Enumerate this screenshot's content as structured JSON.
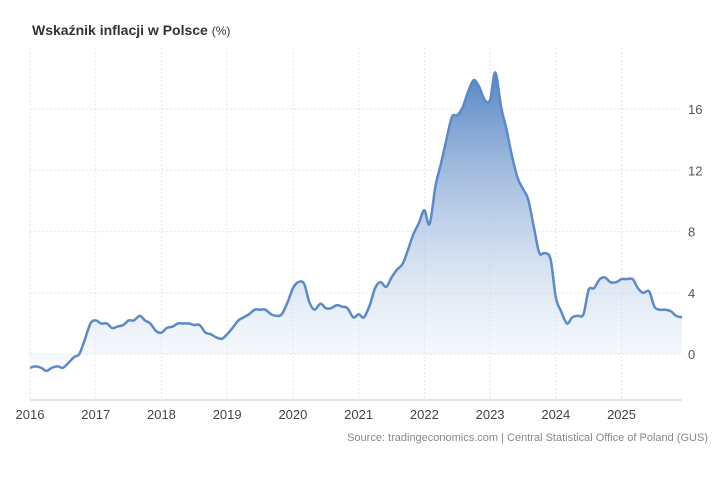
{
  "header": {
    "title": "Wskaźnik inflacji w Polsce",
    "unit": "(%)"
  },
  "footer": {
    "source": "Source: tradingeconomics.com | Central Statistical Office of Poland (GUS)"
  },
  "colors": {
    "line": "#5b8ac7",
    "fill_top": "#5585c4",
    "fill_bottom": "#eef3fb",
    "grid": "#e6e6e6"
  },
  "chart_data": {
    "type": "area",
    "title": "Wskaźnik inflacji w Polsce (%)",
    "xlabel": "",
    "ylabel": "",
    "x_range": [
      2016.0,
      2025.92
    ],
    "ylim": [
      -3,
      20
    ],
    "x_ticks": [
      "2016",
      "2017",
      "2018",
      "2019",
      "2020",
      "2021",
      "2022",
      "2023",
      "2024",
      "2025"
    ],
    "y_ticks": [
      0,
      4,
      8,
      12,
      16
    ],
    "grid": true,
    "series": [
      {
        "name": "Wskaźnik inflacji",
        "x": [
          2016.0,
          2016.08,
          2016.17,
          2016.25,
          2016.33,
          2016.42,
          2016.5,
          2016.58,
          2016.67,
          2016.75,
          2016.83,
          2016.92,
          2017.0,
          2017.08,
          2017.17,
          2017.25,
          2017.33,
          2017.42,
          2017.5,
          2017.58,
          2017.67,
          2017.75,
          2017.83,
          2017.92,
          2018.0,
          2018.08,
          2018.17,
          2018.25,
          2018.33,
          2018.42,
          2018.5,
          2018.58,
          2018.67,
          2018.75,
          2018.83,
          2018.92,
          2019.0,
          2019.08,
          2019.17,
          2019.25,
          2019.33,
          2019.42,
          2019.5,
          2019.58,
          2019.67,
          2019.75,
          2019.83,
          2019.92,
          2020.0,
          2020.08,
          2020.17,
          2020.25,
          2020.33,
          2020.42,
          2020.5,
          2020.58,
          2020.67,
          2020.75,
          2020.83,
          2020.92,
          2021.0,
          2021.08,
          2021.17,
          2021.25,
          2021.33,
          2021.42,
          2021.5,
          2021.58,
          2021.67,
          2021.75,
          2021.83,
          2021.92,
          2022.0,
          2022.08,
          2022.17,
          2022.25,
          2022.33,
          2022.42,
          2022.5,
          2022.58,
          2022.67,
          2022.75,
          2022.83,
          2022.92,
          2023.0,
          2023.08,
          2023.17,
          2023.25,
          2023.33,
          2023.42,
          2023.5,
          2023.58,
          2023.67,
          2023.75,
          2023.83,
          2023.92,
          2024.0,
          2024.08,
          2024.17,
          2024.25,
          2024.33,
          2024.42,
          2024.5,
          2024.58,
          2024.67,
          2024.75,
          2024.83,
          2024.92,
          2025.0,
          2025.08,
          2025.17,
          2025.25,
          2025.33,
          2025.42,
          2025.5,
          2025.58,
          2025.67,
          2025.75,
          2025.83,
          2025.92
        ],
        "values": [
          -0.9,
          -0.8,
          -0.9,
          -1.1,
          -0.9,
          -0.8,
          -0.9,
          -0.6,
          -0.2,
          0.0,
          0.9,
          2.0,
          2.2,
          2.0,
          2.0,
          1.7,
          1.8,
          1.9,
          2.2,
          2.2,
          2.5,
          2.2,
          2.0,
          1.5,
          1.4,
          1.7,
          1.8,
          2.0,
          2.0,
          2.0,
          1.9,
          1.9,
          1.4,
          1.3,
          1.1,
          1.0,
          1.3,
          1.7,
          2.2,
          2.4,
          2.6,
          2.9,
          2.9,
          2.9,
          2.6,
          2.5,
          2.6,
          3.4,
          4.3,
          4.7,
          4.6,
          3.4,
          2.9,
          3.3,
          3.0,
          3.0,
          3.2,
          3.1,
          3.0,
          2.4,
          2.6,
          2.4,
          3.2,
          4.3,
          4.7,
          4.4,
          5.0,
          5.5,
          5.9,
          6.8,
          7.8,
          8.6,
          9.4,
          8.5,
          11.0,
          12.4,
          13.9,
          15.5,
          15.6,
          16.1,
          17.2,
          17.9,
          17.5,
          16.6,
          16.6,
          18.4,
          16.1,
          14.7,
          13.0,
          11.5,
          10.8,
          10.1,
          8.2,
          6.6,
          6.6,
          6.2,
          3.7,
          2.8,
          2.0,
          2.4,
          2.5,
          2.6,
          4.2,
          4.3,
          4.9,
          5.0,
          4.7,
          4.7,
          4.9,
          4.9,
          4.9,
          4.3,
          4.0,
          4.1,
          3.1,
          2.9,
          2.9,
          2.8,
          2.5,
          2.4
        ]
      }
    ]
  }
}
